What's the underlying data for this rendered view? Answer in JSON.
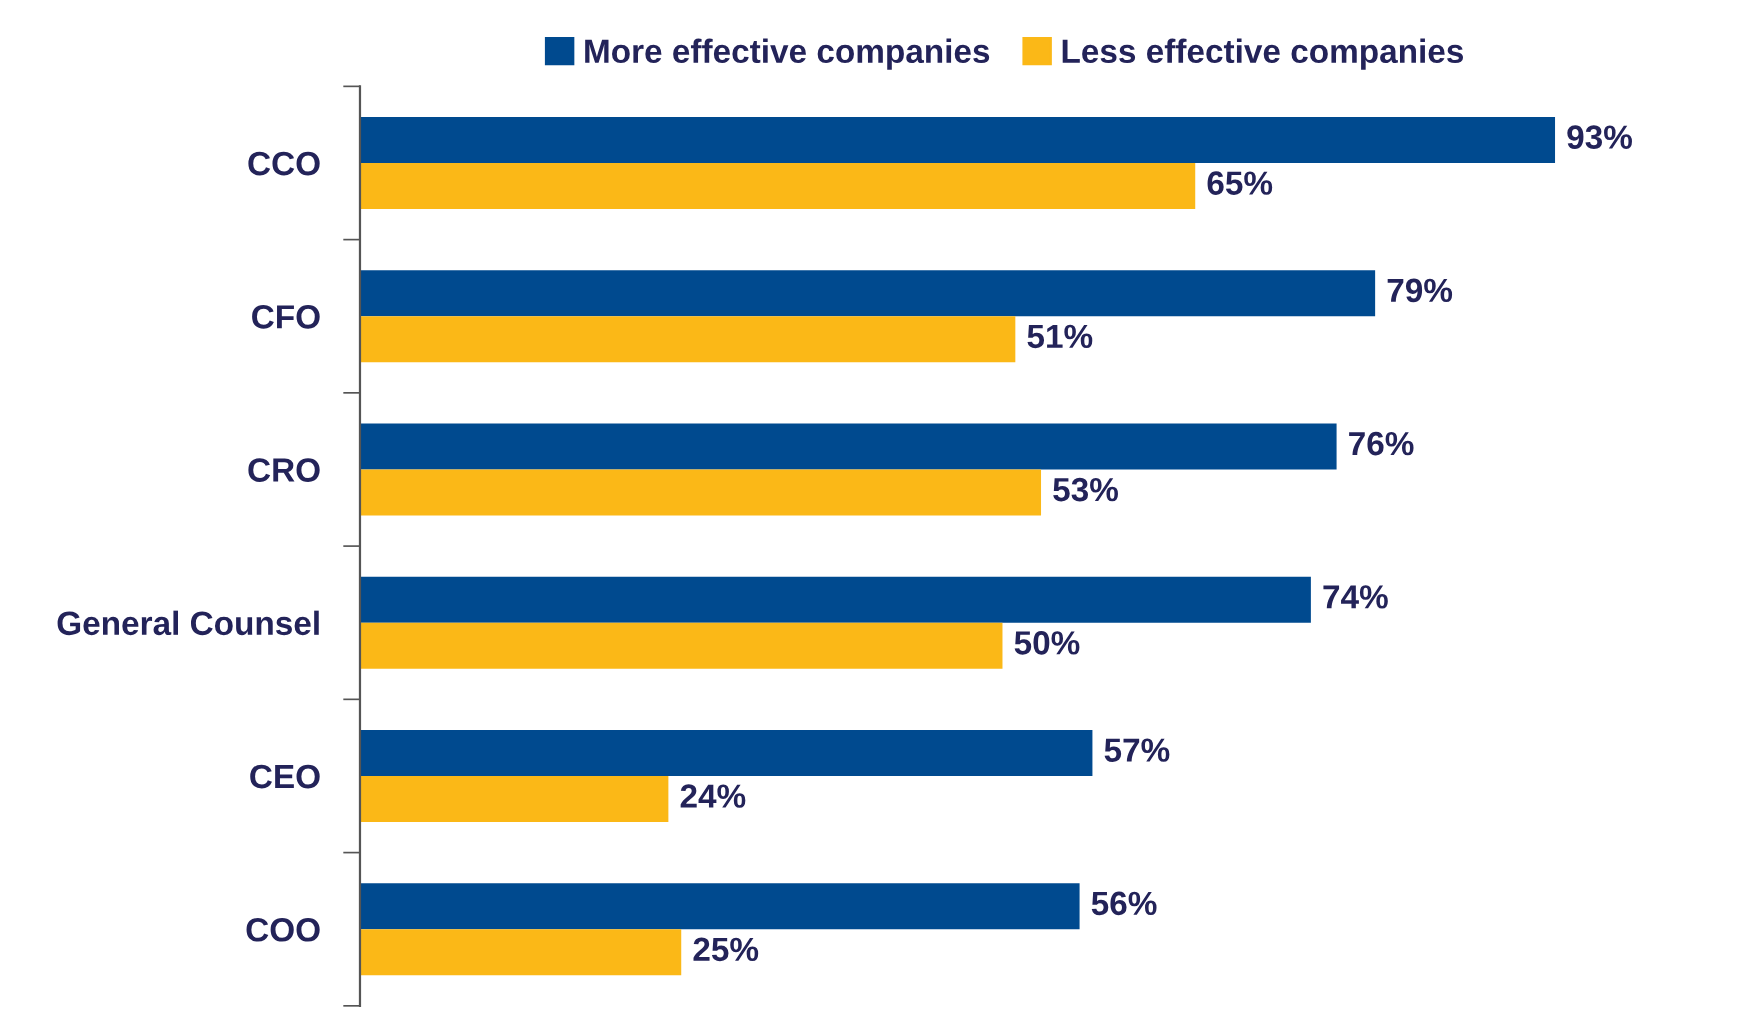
{
  "chart_data": {
    "type": "bar",
    "orientation": "horizontal",
    "categories": [
      "CCO",
      "CFO",
      "CRO",
      "General Counsel",
      "CEO",
      "COO"
    ],
    "series": [
      {
        "name": "More effective companies",
        "color": "#004a8f",
        "values": [
          93,
          79,
          76,
          74,
          57,
          56
        ],
        "value_labels": [
          "93%",
          "79%",
          "76%",
          "74%",
          "57%",
          "56%"
        ]
      },
      {
        "name": "Less effective companies",
        "color": "#fbb817",
        "values": [
          65,
          51,
          53,
          50,
          24,
          25
        ],
        "value_labels": [
          "65%",
          "51%",
          "53%",
          "50%",
          "24%",
          "25%"
        ]
      }
    ],
    "legend": "top",
    "grid": false
  }
}
